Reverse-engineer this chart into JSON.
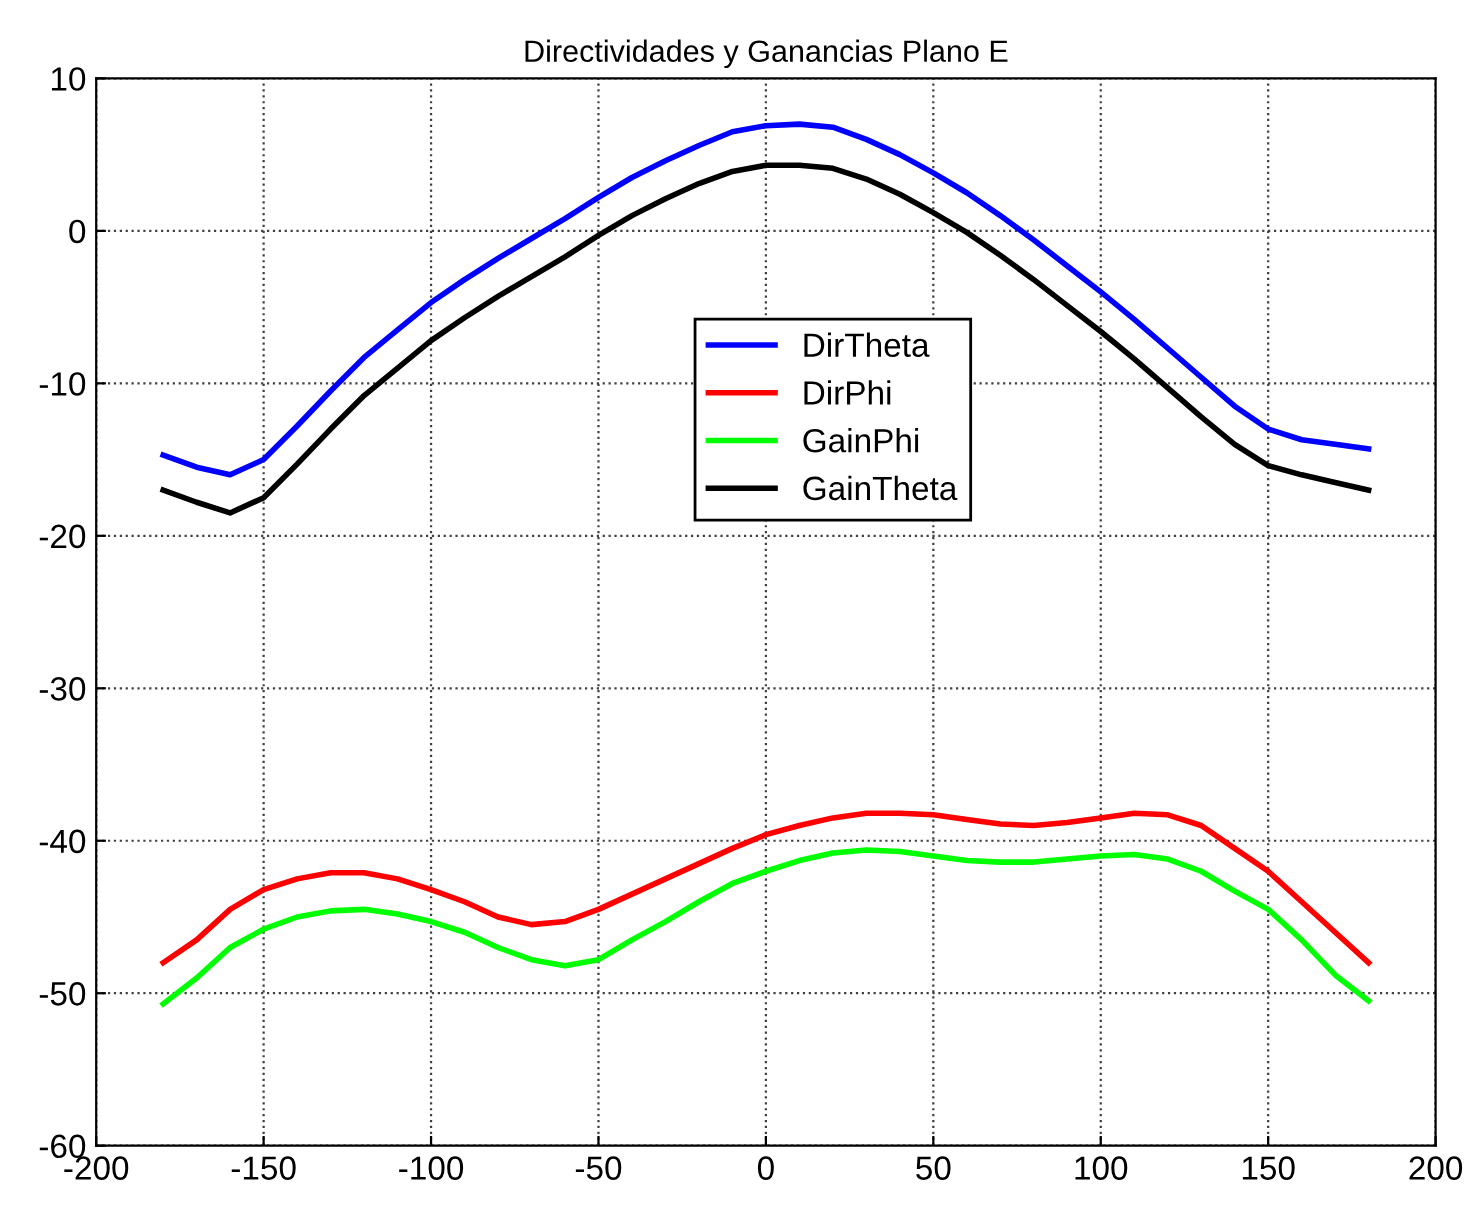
{
  "chart_data": {
    "type": "line",
    "title": "Directividades y Ganancias Plano E",
    "x": [
      -180,
      -170,
      -160,
      -150,
      -140,
      -130,
      -120,
      -110,
      -100,
      -90,
      -80,
      -70,
      -60,
      -50,
      -40,
      -30,
      -20,
      -10,
      0,
      10,
      20,
      30,
      40,
      50,
      60,
      70,
      80,
      90,
      100,
      110,
      120,
      130,
      140,
      150,
      160,
      170,
      180
    ],
    "series": [
      {
        "name": "DirTheta",
        "color": "#0000ff",
        "values": [
          -14.7,
          -15.5,
          -16,
          -15,
          -12.8,
          -10.5,
          -8.3,
          -6.5,
          -4.7,
          -3.2,
          -1.8,
          -0.5,
          0.8,
          2.2,
          3.5,
          4.6,
          5.6,
          6.5,
          6.9,
          7,
          6.8,
          6.0,
          5.0,
          3.8,
          2.5,
          1.0,
          -0.6,
          -2.3,
          -4.0,
          -5.8,
          -7.7,
          -9.6,
          -11.5,
          -13,
          -13.7,
          -14,
          -14.3
        ]
      },
      {
        "name": "DirPhi",
        "color": "#ff0000",
        "values": [
          -48,
          -46.5,
          -44.5,
          -43.2,
          -42.5,
          -42.1,
          -42.1,
          -42.5,
          -43.2,
          -44,
          -45,
          -45.5,
          -45.3,
          -44.5,
          -43.5,
          -42.5,
          -41.5,
          -40.5,
          -39.6,
          -39,
          -38.5,
          -38.2,
          -38.2,
          -38.3,
          -38.6,
          -38.9,
          -39,
          -38.8,
          -38.5,
          -38.2,
          -38.3,
          -39,
          -40.5,
          -42,
          -44,
          -46,
          -48
        ]
      },
      {
        "name": "GainPhi",
        "color": "#00ff00",
        "values": [
          -50.7,
          -49,
          -47,
          -45.8,
          -45,
          -44.6,
          -44.5,
          -44.8,
          -45.3,
          -46,
          -47,
          -47.8,
          -48.2,
          -47.8,
          -46.5,
          -45.3,
          -44,
          -42.8,
          -42,
          -41.3,
          -40.8,
          -40.6,
          -40.7,
          -41,
          -41.3,
          -41.4,
          -41.4,
          -41.2,
          -41,
          -40.9,
          -41.2,
          -42,
          -43.3,
          -44.5,
          -46.5,
          -48.8,
          -50.5
        ]
      },
      {
        "name": "GainTheta",
        "color": "#000000",
        "values": [
          -17,
          -17.8,
          -18.5,
          -17.5,
          -15.3,
          -13,
          -10.8,
          -9,
          -7.2,
          -5.7,
          -4.3,
          -3,
          -1.7,
          -0.3,
          1,
          2.1,
          3.1,
          3.9,
          4.3,
          4.3,
          4.1,
          3.4,
          2.4,
          1.2,
          -0.1,
          -1.6,
          -3.2,
          -4.9,
          -6.6,
          -8.4,
          -10.3,
          -12.2,
          -14,
          -15.4,
          -16,
          -16.5,
          -17
        ]
      }
    ],
    "xlim": [
      -200,
      200
    ],
    "xticks": [
      -200,
      -150,
      -100,
      -50,
      0,
      50,
      100,
      150,
      200
    ],
    "ylim": [
      -60,
      10
    ],
    "yticks": [
      -60,
      -50,
      -40,
      -30,
      -20,
      -10,
      0,
      10
    ],
    "grid": true,
    "line_style": "solid",
    "legend": "top"
  }
}
